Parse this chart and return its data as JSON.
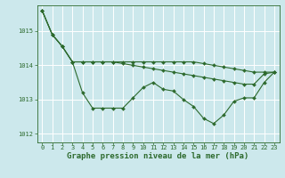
{
  "title": "Graphe pression niveau de la mer (hPa)",
  "bg_color": "#cce8ec",
  "grid_color": "#ffffff",
  "line_color": "#2d6a2d",
  "ylim": [
    1011.75,
    1015.75
  ],
  "yticks": [
    1012,
    1013,
    1014,
    1015
  ],
  "xlim": [
    -0.5,
    23.5
  ],
  "xticks": [
    0,
    1,
    2,
    3,
    4,
    5,
    6,
    7,
    8,
    9,
    10,
    11,
    12,
    13,
    14,
    15,
    16,
    17,
    18,
    19,
    20,
    21,
    22,
    23
  ],
  "series1": [
    1015.6,
    1014.9,
    1014.55,
    1014.1,
    1013.2,
    1012.75,
    1012.75,
    1012.75,
    1012.75,
    1013.05,
    1013.35,
    1013.5,
    1013.3,
    1013.25,
    1013.0,
    1012.8,
    1012.45,
    1012.3,
    1012.55,
    1012.95,
    1013.05,
    1013.05,
    1013.5,
    1013.8
  ],
  "series2": [
    1015.6,
    1014.9,
    1014.55,
    1014.1,
    1014.1,
    1014.1,
    1014.1,
    1014.1,
    1014.05,
    1014.0,
    1013.95,
    1013.9,
    1013.85,
    1013.8,
    1013.75,
    1013.7,
    1013.65,
    1013.6,
    1013.55,
    1013.5,
    1013.45,
    1013.45,
    1013.75,
    1013.8
  ],
  "series3": [
    1015.6,
    1014.9,
    1014.55,
    1014.1,
    1014.1,
    1014.1,
    1014.1,
    1014.1,
    1014.1,
    1014.1,
    1014.1,
    1014.1,
    1014.1,
    1014.1,
    1014.1,
    1014.1,
    1014.05,
    1014.0,
    1013.95,
    1013.9,
    1013.85,
    1013.8,
    1013.8,
    1013.8
  ],
  "marker": "D",
  "markersize": 2.0,
  "linewidth": 0.8,
  "title_fontsize": 6.5,
  "tick_fontsize": 5.0
}
